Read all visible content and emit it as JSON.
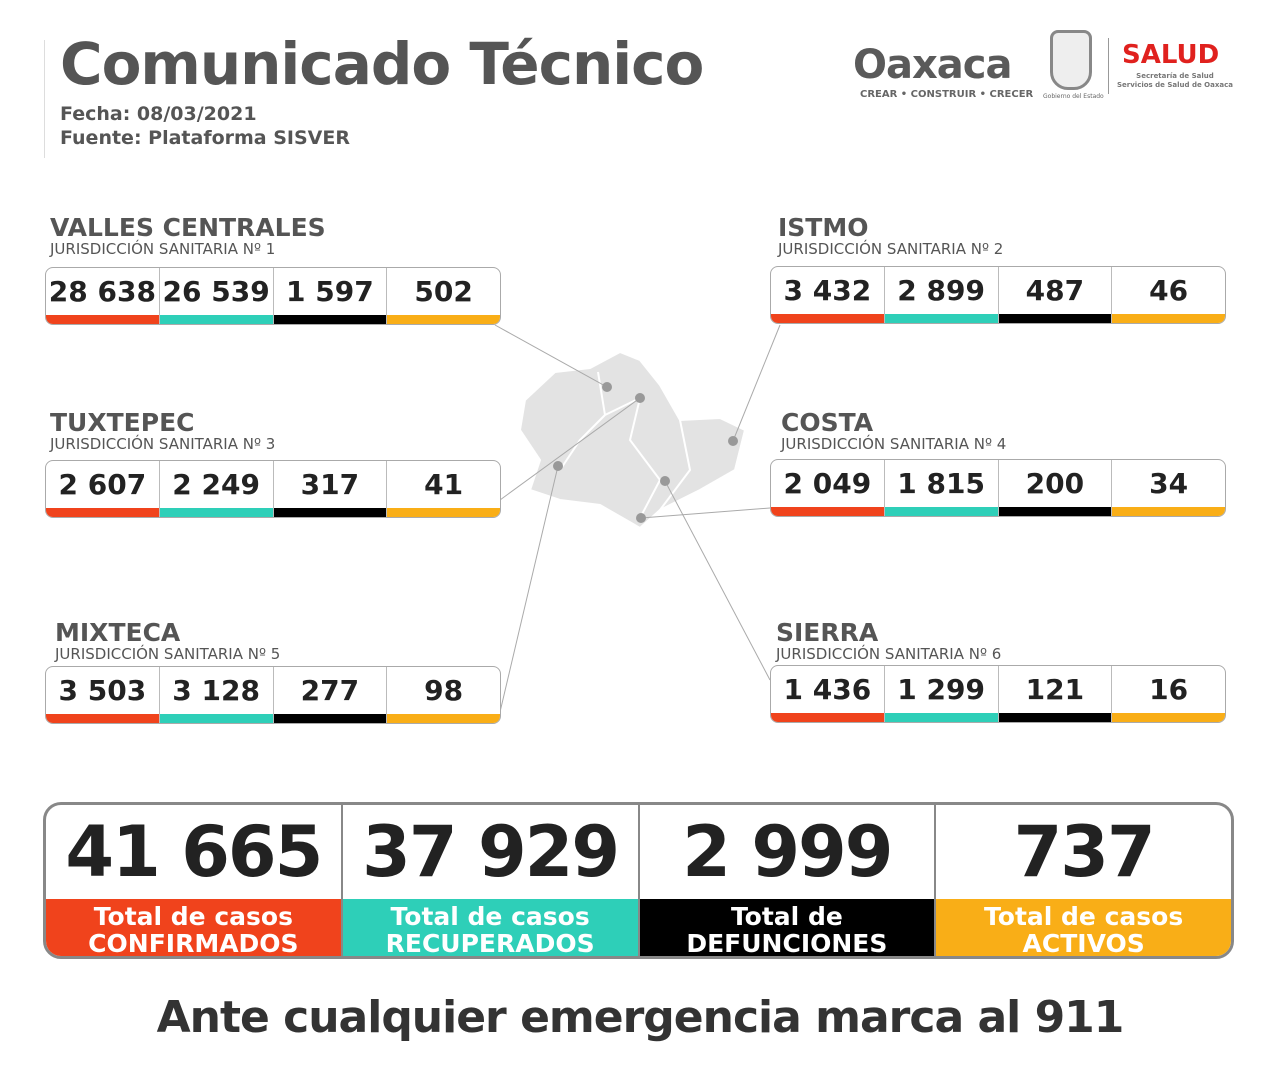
{
  "header": {
    "title": "Comunicado Técnico",
    "fecha": "Fecha: 08/03/2021",
    "fuente": "Fuente: Plataforma SISVER"
  },
  "logos": {
    "oaxaca": "Oaxaca",
    "oaxaca_tagline": "CREAR • CONSTRUIR • CRECER",
    "gobierno": "Gobierno del Estado",
    "salud": "SALUD",
    "salud_sub1": "Secretaría de Salud",
    "salud_sub2": "Servicios de Salud de Oaxaca"
  },
  "colors": {
    "confirmados": "#f0431c",
    "recuperados": "#2ecfb8",
    "defunciones": "#000000",
    "activos": "#f9ae17"
  },
  "regions": [
    {
      "name": "VALLES CENTRALES",
      "sub": "JURISDICCIÓN SANITARIA Nº 1",
      "values": [
        "28 638",
        "26 539",
        "1 597",
        "502"
      ]
    },
    {
      "name": "ISTMO",
      "sub": "JURISDICCIÓN SANITARIA Nº 2",
      "values": [
        "3 432",
        "2 899",
        "487",
        "46"
      ]
    },
    {
      "name": "TUXTEPEC",
      "sub": "JURISDICCIÓN SANITARIA Nº 3",
      "values": [
        "2 607",
        "2 249",
        "317",
        "41"
      ]
    },
    {
      "name": "COSTA",
      "sub": "JURISDICCIÓN SANITARIA Nº 4",
      "values": [
        "2 049",
        "1 815",
        "200",
        "34"
      ]
    },
    {
      "name": "MIXTECA",
      "sub": "JURISDICCIÓN SANITARIA Nº 5",
      "values": [
        "3 503",
        "3 128",
        "277",
        "98"
      ]
    },
    {
      "name": "SIERRA",
      "sub": "JURISDICCIÓN SANITARIA Nº 6",
      "values": [
        "1 436",
        "1 299",
        "121",
        "16"
      ]
    }
  ],
  "totals": [
    {
      "value": "41 665",
      "label1": "Total de casos",
      "label2": "CONFIRMADOS"
    },
    {
      "value": "37 929",
      "label1": "Total de casos",
      "label2": "RECUPERADOS"
    },
    {
      "value": "2 999",
      "label1": "Total de",
      "label2": "DEFUNCIONES"
    },
    {
      "value": "737",
      "label1": "Total de casos",
      "label2": "ACTIVOS"
    }
  ],
  "footer": "Ante cualquier emergencia marca al 911"
}
